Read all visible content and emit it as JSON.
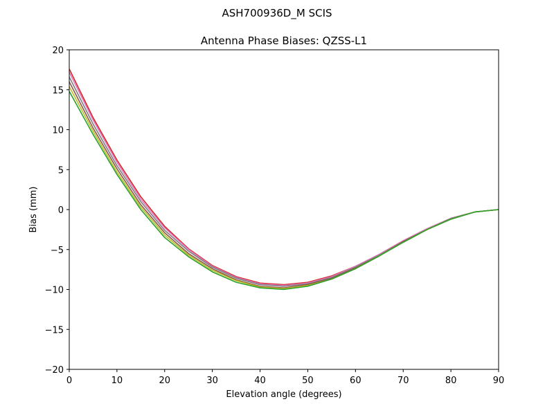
{
  "chart_data": {
    "type": "line",
    "suptitle": "ASH700936D_M    SCIS",
    "title": "Antenna Phase Biases: QZSS-L1",
    "xlabel": "Elevation angle (degrees)",
    "ylabel": "Bias (mm)",
    "xlim": [
      0,
      90
    ],
    "ylim": [
      -20,
      20
    ],
    "xticks": [
      0,
      10,
      20,
      30,
      40,
      50,
      60,
      70,
      80,
      90
    ],
    "yticks": [
      -20,
      -15,
      -10,
      -5,
      0,
      5,
      10,
      15,
      20
    ],
    "ytick_labels": [
      "−20",
      "−15",
      "−10",
      "−5",
      "0",
      "5",
      "10",
      "15",
      "20"
    ],
    "grid": false,
    "x": [
      0,
      5,
      10,
      15,
      20,
      25,
      30,
      35,
      40,
      45,
      50,
      55,
      60,
      65,
      70,
      75,
      80,
      85,
      90
    ],
    "series": [
      {
        "color": "#d62728",
        "values": [
          17.6,
          11.5,
          6.2,
          1.6,
          -2.1,
          -4.9,
          -7.0,
          -8.4,
          -9.2,
          -9.4,
          -9.1,
          -8.3,
          -7.1,
          -5.6,
          -3.9,
          -2.4,
          -1.1,
          -0.3,
          0.0
        ]
      },
      {
        "color": "#e377c2",
        "values": [
          17.2,
          11.2,
          5.9,
          1.3,
          -2.3,
          -5.0,
          -7.1,
          -8.5,
          -9.3,
          -9.5,
          -9.2,
          -8.4,
          -7.1,
          -5.6,
          -3.9,
          -2.4,
          -1.1,
          -0.3,
          0.0
        ]
      },
      {
        "color": "#7f7f7f",
        "values": [
          16.6,
          10.7,
          5.5,
          1.0,
          -2.6,
          -5.2,
          -7.2,
          -8.6,
          -9.4,
          -9.6,
          -9.3,
          -8.5,
          -7.2,
          -5.7,
          -4.0,
          -2.5,
          -1.1,
          -0.3,
          0.0
        ]
      },
      {
        "color": "#8c564b",
        "values": [
          16.0,
          10.2,
          5.1,
          0.6,
          -2.9,
          -5.5,
          -7.4,
          -8.8,
          -9.6,
          -9.8,
          -9.4,
          -8.6,
          -7.3,
          -5.8,
          -4.0,
          -2.5,
          -1.2,
          -0.3,
          0.0
        ]
      },
      {
        "color": "#bcbd22",
        "values": [
          15.4,
          9.8,
          4.7,
          0.3,
          -3.2,
          -5.7,
          -7.6,
          -8.9,
          -9.7,
          -9.9,
          -9.5,
          -8.7,
          -7.4,
          -5.8,
          -4.1,
          -2.5,
          -1.2,
          -0.3,
          0.0
        ]
      },
      {
        "color": "#2ca02c",
        "values": [
          14.8,
          9.4,
          4.4,
          0.0,
          -3.5,
          -5.9,
          -7.8,
          -9.1,
          -9.8,
          -10.0,
          -9.6,
          -8.7,
          -7.4,
          -5.8,
          -4.1,
          -2.5,
          -1.2,
          -0.3,
          0.0
        ]
      }
    ]
  }
}
